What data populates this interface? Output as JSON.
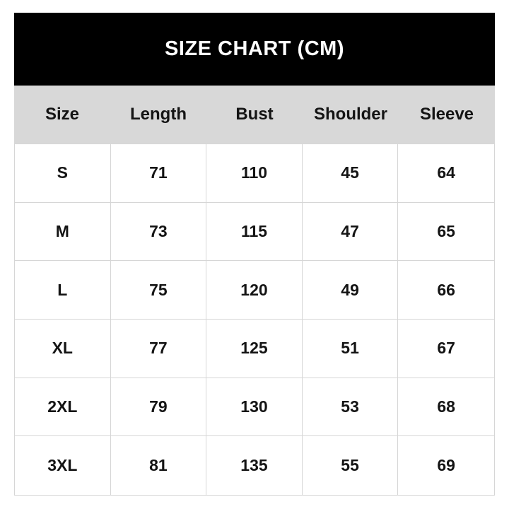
{
  "chart_data": {
    "type": "table",
    "title": "SIZE CHART (CM)",
    "units": "CM",
    "columns": [
      "Size",
      "Length",
      "Bust",
      "Shoulder",
      "Sleeve"
    ],
    "rows": [
      [
        "S",
        "71",
        "110",
        "45",
        "64"
      ],
      [
        "M",
        "73",
        "115",
        "47",
        "65"
      ],
      [
        "L",
        "75",
        "120",
        "49",
        "66"
      ],
      [
        "XL",
        "77",
        "125",
        "51",
        "67"
      ],
      [
        "2XL",
        "79",
        "130",
        "53",
        "68"
      ],
      [
        "3XL",
        "81",
        "135",
        "55",
        "69"
      ]
    ]
  },
  "colors": {
    "title-bg": "#000000",
    "title-text": "#ffffff",
    "header-bg": "#d8d8d8",
    "grid-border": "#d6d6d6",
    "cell-text": "#141414",
    "page-bg": "#ffffff"
  }
}
